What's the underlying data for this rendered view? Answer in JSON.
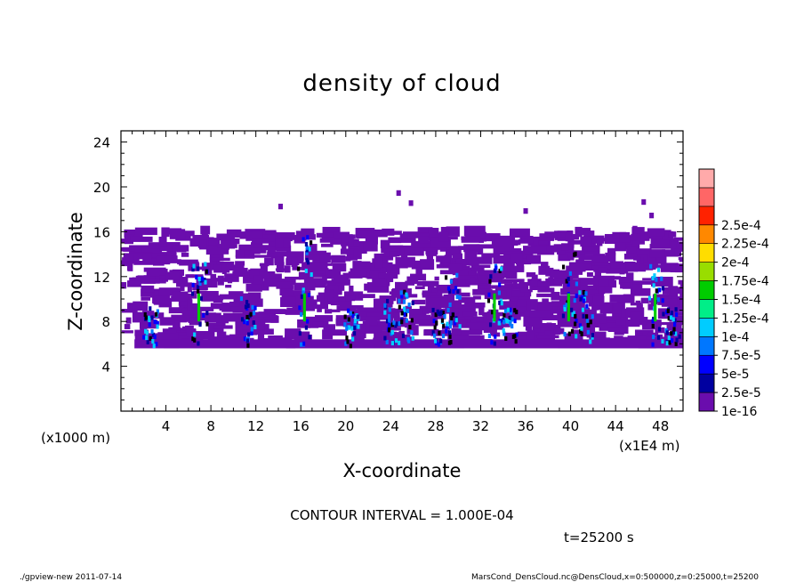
{
  "chart_data": {
    "type": "heatmap",
    "title": "density of cloud",
    "xlabel": "X-coordinate",
    "ylabel": "Z-coordinate",
    "x_unit_left": "(x1000 m)",
    "x_unit_right": "(x1E4 m)",
    "xlim": [
      0,
      50
    ],
    "ylim": [
      0,
      25
    ],
    "x_ticks": [
      "4",
      "8",
      "12",
      "16",
      "20",
      "24",
      "28",
      "32",
      "36",
      "40",
      "44",
      "48"
    ],
    "y_ticks": [
      "4",
      "8",
      "12",
      "16",
      "20",
      "24"
    ],
    "colorbar": {
      "labels": [
        "1e-16",
        "2.5e-5",
        "5e-5",
        "7.5e-5",
        "1e-4",
        "1.25e-4",
        "1.5e-4",
        "1.75e-4",
        "2e-4",
        "2.25e-4",
        "2.5e-4"
      ],
      "colors": [
        "#6a0dad",
        "#0000a0",
        "#0000ff",
        "#0077ff",
        "#00ccff",
        "#00ee88",
        "#00cc00",
        "#99dd00",
        "#ffdd00",
        "#ff8800",
        "#ff2200",
        "#ff6666",
        "#ffaaaa"
      ]
    },
    "cloud_layer_z": [
      5.6,
      15.8
    ],
    "contour_interval": "CONTOUR INTERVAL = 1.000E-04",
    "time": "t=25200 s"
  },
  "footer": {
    "left": "./gpview-new   2011-07-14",
    "right": "MarsCond_DensCloud.nc@DensCloud,x=0:500000,z=0:25000,t=25200"
  }
}
